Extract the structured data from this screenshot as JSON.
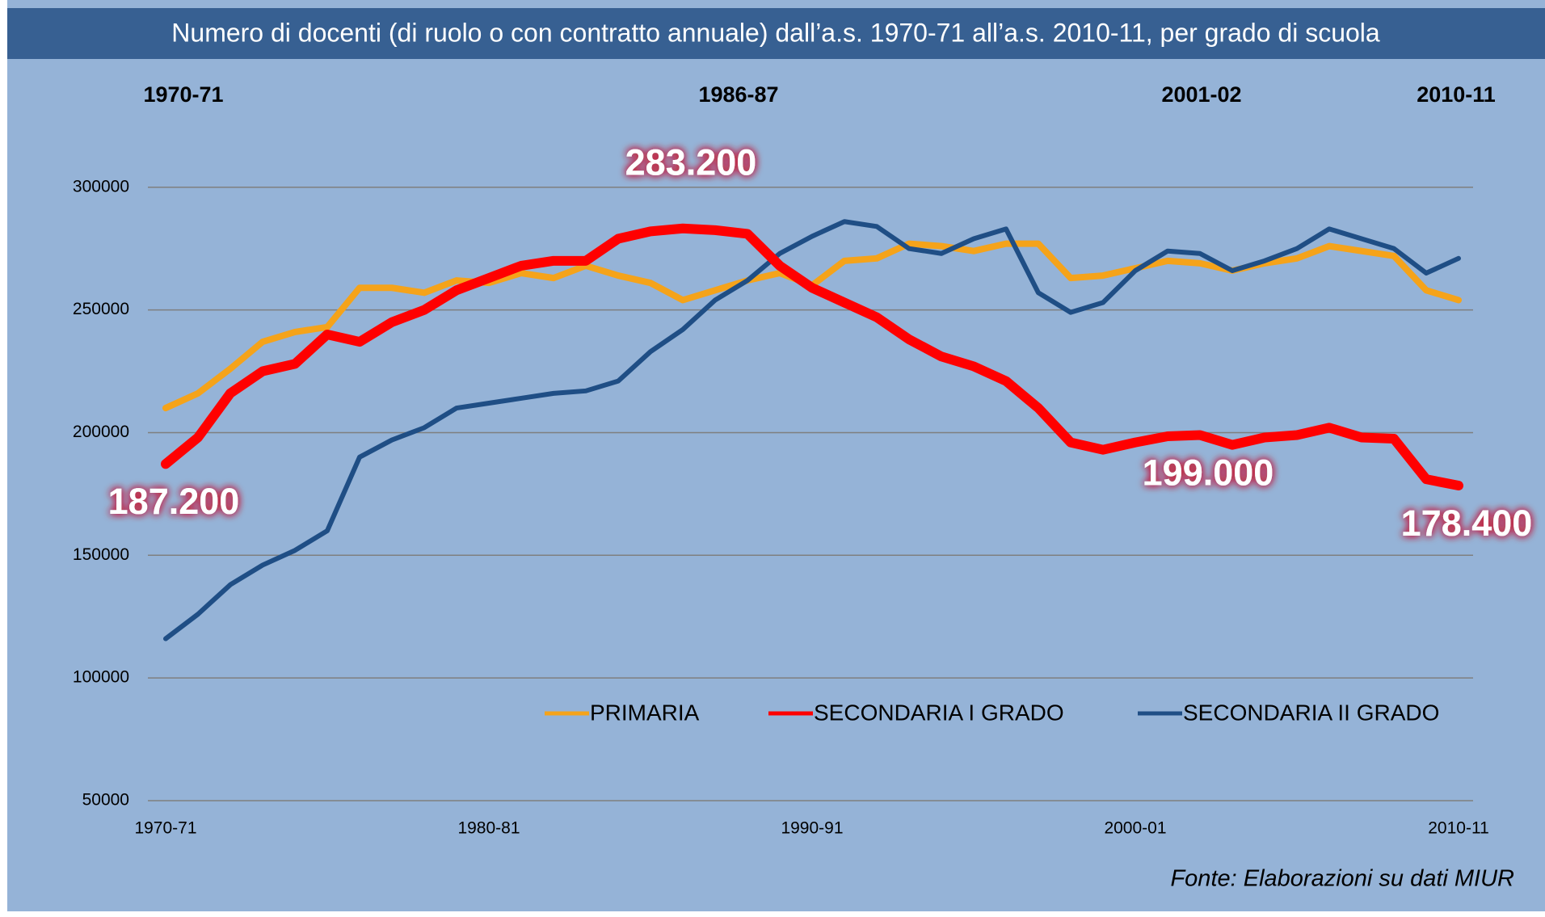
{
  "chart_data": {
    "type": "line",
    "title": "Numero  di docenti  (di ruolo o con contratto annuale) dall’a.s. 1970-71 all’a.s. 2010-11, per grado di scuola",
    "period_labels": [
      "1970-71",
      "1986-87",
      "2001-02",
      "2010-11"
    ],
    "source": "Fonte: Elaborazioni su dati MIUR",
    "categories": [
      "1970-71",
      null,
      null,
      null,
      null,
      null,
      null,
      null,
      null,
      null,
      "1980-81",
      null,
      null,
      null,
      null,
      null,
      null,
      null,
      null,
      null,
      "1990-91",
      null,
      null,
      null,
      null,
      null,
      null,
      null,
      null,
      null,
      "2000-01",
      null,
      null,
      null,
      null,
      null,
      null,
      null,
      null,
      null,
      "2010-11"
    ],
    "series": [
      {
        "name": "PRIMARIA",
        "color": "#f5a31a",
        "values": [
          210000,
          216000,
          226000,
          237000,
          241000,
          243000,
          259000,
          259000,
          257000,
          262000,
          261000,
          265000,
          263000,
          268000,
          264000,
          261000,
          254000,
          258000,
          262000,
          265000,
          260000,
          270000,
          271000,
          277000,
          276000,
          274000,
          277000,
          277000,
          263000,
          264000,
          267000,
          270000,
          269000,
          266000,
          269000,
          271000,
          276000,
          274000,
          272000,
          258000,
          254000
        ]
      },
      {
        "name": "SECONDARIA I GRADO",
        "color": "#ff0000",
        "values": [
          187200,
          198000,
          216000,
          225000,
          228000,
          240000,
          237000,
          245000,
          250000,
          258000,
          263000,
          268000,
          270000,
          270000,
          279000,
          282000,
          283200,
          282500,
          281000,
          268000,
          259000,
          253000,
          247000,
          238000,
          231000,
          227000,
          221000,
          210000,
          196000,
          193000,
          196000,
          198500,
          199000,
          195000,
          198000,
          199000,
          202000,
          198000,
          197500,
          181000,
          178400
        ],
        "value_labels": [
          "187.200",
          null,
          null,
          null,
          null,
          null,
          null,
          null,
          null,
          null,
          null,
          null,
          null,
          null,
          null,
          null,
          "283.200",
          null,
          null,
          null,
          null,
          null,
          null,
          null,
          null,
          null,
          null,
          null,
          null,
          null,
          null,
          null,
          "199.000",
          null,
          null,
          null,
          null,
          null,
          null,
          null,
          "178.400"
        ]
      },
      {
        "name": "SECONDARIA II GRADO",
        "color": "#1f4e85",
        "values": [
          116000,
          126000,
          138000,
          146000,
          152000,
          160000,
          190000,
          197000,
          202000,
          210000,
          212000,
          214000,
          216000,
          217000,
          221000,
          233000,
          242000,
          254000,
          262000,
          273000,
          280000,
          286000,
          284000,
          275000,
          273000,
          279000,
          283000,
          257000,
          249000,
          253000,
          266000,
          274000,
          273000,
          266000,
          270000,
          275000,
          283000,
          279000,
          275000,
          265000,
          271000
        ]
      }
    ],
    "ylim": [
      50000,
      320000
    ],
    "yticks": [
      50000,
      100000,
      150000,
      200000,
      250000,
      300000
    ],
    "grid": true
  }
}
